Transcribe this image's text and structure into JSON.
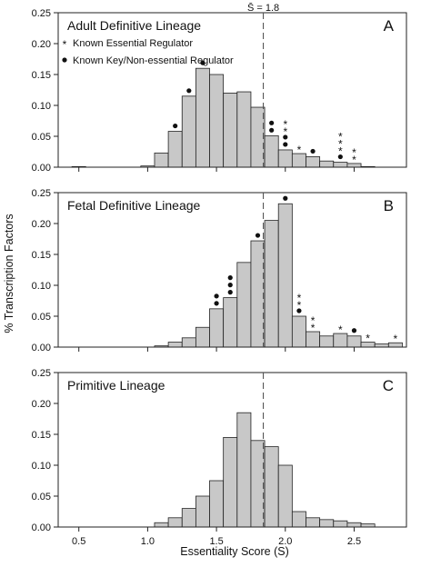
{
  "chart_data": {
    "type": "bar",
    "ylabel": "% Transcription Factors",
    "xlabel": "Essentiality Score (S)",
    "xlim": [
      0.35,
      2.88
    ],
    "xticks": [
      0.5,
      1.0,
      1.5,
      2.0,
      2.5
    ],
    "xtick_labels": [
      "0.5",
      "1.0",
      "1.5",
      "2.0",
      "2.5"
    ],
    "ylim": [
      0,
      0.25
    ],
    "yticks": [
      0,
      0.05,
      0.1,
      0.15,
      0.2,
      0.25
    ],
    "ytick_labels": [
      "0.00",
      "0.05",
      "0.10",
      "0.15",
      "0.20",
      "0.25"
    ],
    "bin_width": 0.1,
    "bin_starts": [
      0.45,
      0.55,
      0.65,
      0.75,
      0.85,
      0.95,
      1.05,
      1.15,
      1.25,
      1.35,
      1.45,
      1.55,
      1.65,
      1.75,
      1.85,
      1.95,
      2.05,
      2.15,
      2.25,
      2.35,
      2.45,
      2.55,
      2.65,
      2.75
    ],
    "reference_line": {
      "x": 1.84,
      "label": "S̄ = 1.8"
    },
    "legend": {
      "star_label": "Known Essential Regulator",
      "dot_label": "Known Key/Non-essential Regulator"
    },
    "panels": [
      {
        "letter": "A",
        "title": "Adult Definitive Lineage",
        "values": [
          0.001,
          0,
          0,
          0,
          0,
          0.002,
          0.023,
          0.058,
          0.115,
          0.16,
          0.15,
          0.12,
          0.122,
          0.097,
          0.051,
          0.028,
          0.022,
          0.017,
          0.01,
          0.008,
          0.006,
          0.001,
          0,
          0
        ],
        "markers": [
          {
            "bin": 7,
            "marks": [
              "dot"
            ]
          },
          {
            "bin": 8,
            "marks": [
              "dot"
            ]
          },
          {
            "bin": 9,
            "marks": [
              "dot"
            ]
          },
          {
            "bin": 14,
            "marks": [
              "dot",
              "dot"
            ]
          },
          {
            "bin": 15,
            "marks": [
              "dot",
              "dot",
              "star",
              "star"
            ]
          },
          {
            "bin": 16,
            "marks": [
              "star"
            ]
          },
          {
            "bin": 17,
            "marks": [
              "dot"
            ]
          },
          {
            "bin": 19,
            "marks": [
              "dot",
              "star",
              "star",
              "star"
            ]
          },
          {
            "bin": 20,
            "marks": [
              "star",
              "star"
            ]
          }
        ]
      },
      {
        "letter": "B",
        "title": "Fetal Definitive Lineage",
        "values": [
          0,
          0,
          0,
          0,
          0,
          0,
          0.002,
          0.008,
          0.015,
          0.032,
          0.062,
          0.08,
          0.137,
          0.172,
          0.205,
          0.232,
          0.05,
          0.025,
          0.018,
          0.022,
          0.018,
          0.008,
          0.005,
          0.007
        ],
        "markers": [
          {
            "bin": 10,
            "marks": [
              "dot",
              "dot"
            ]
          },
          {
            "bin": 11,
            "marks": [
              "dot",
              "dot",
              "dot"
            ]
          },
          {
            "bin": 13,
            "marks": [
              "dot"
            ]
          },
          {
            "bin": 15,
            "marks": [
              "dot"
            ]
          },
          {
            "bin": 16,
            "marks": [
              "dot",
              "star",
              "star"
            ]
          },
          {
            "bin": 17,
            "marks": [
              "star",
              "star"
            ]
          },
          {
            "bin": 19,
            "marks": [
              "star"
            ]
          },
          {
            "bin": 20,
            "marks": [
              "dot"
            ]
          },
          {
            "bin": 21,
            "marks": [
              "star"
            ]
          },
          {
            "bin": 23,
            "marks": [
              "star"
            ]
          }
        ]
      },
      {
        "letter": "C",
        "title": "Primitive Lineage",
        "values": [
          0,
          0,
          0,
          0,
          0,
          0,
          0.007,
          0.015,
          0.03,
          0.05,
          0.075,
          0.145,
          0.185,
          0.14,
          0.13,
          0.1,
          0.025,
          0.015,
          0.012,
          0.01,
          0.007,
          0.005,
          0,
          0
        ],
        "markers": []
      }
    ]
  }
}
